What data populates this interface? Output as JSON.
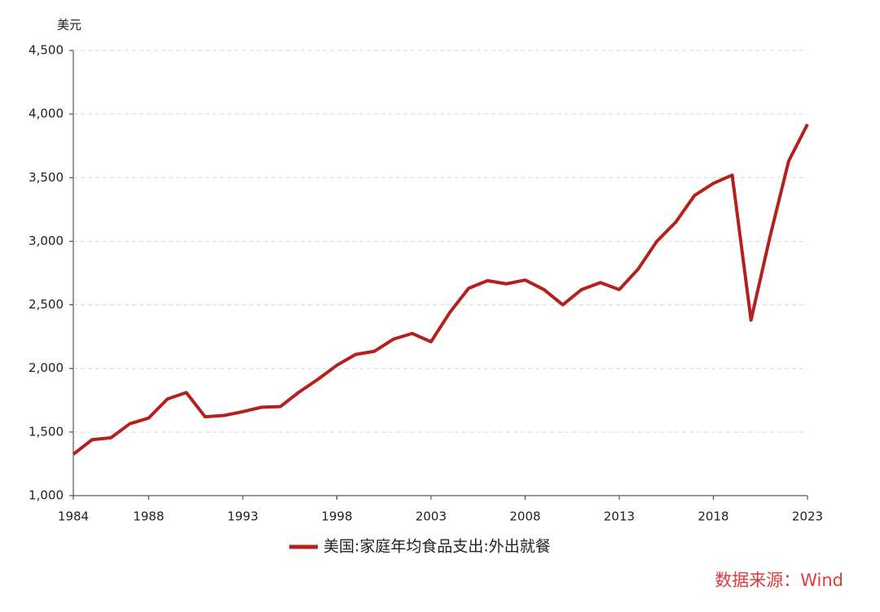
{
  "chart_data": {
    "type": "line",
    "y_unit": "美元",
    "source": "数据来源：Wind",
    "x": [
      1984,
      1985,
      1986,
      1987,
      1988,
      1989,
      1990,
      1991,
      1992,
      1993,
      1994,
      1995,
      1996,
      1997,
      1998,
      1999,
      2000,
      2001,
      2002,
      2003,
      2004,
      2005,
      2006,
      2007,
      2008,
      2009,
      2010,
      2011,
      2012,
      2013,
      2014,
      2015,
      2016,
      2017,
      2018,
      2019,
      2020,
      2021,
      2022,
      2023
    ],
    "series": [
      {
        "name": "美国:家庭年均食品支出:外出就餐",
        "color": "#b5201e",
        "values": [
          1325,
          1440,
          1455,
          1565,
          1610,
          1760,
          1810,
          1620,
          1630,
          1660,
          1695,
          1700,
          1815,
          1915,
          2025,
          2110,
          2135,
          2230,
          2275,
          2210,
          2440,
          2630,
          2690,
          2665,
          2695,
          2620,
          2500,
          2620,
          2675,
          2620,
          2780,
          3000,
          3150,
          3360,
          3455,
          3520,
          2380,
          3030,
          3630,
          3920
        ]
      }
    ],
    "xlim": [
      1984,
      2023
    ],
    "xticks": [
      1984,
      1988,
      1993,
      1998,
      2003,
      2008,
      2013,
      2018,
      2023
    ],
    "ylim": [
      1000,
      4500
    ],
    "yticks": [
      {
        "value": 1000,
        "label": "1,000"
      },
      {
        "value": 1500,
        "label": "1,500"
      },
      {
        "value": 2000,
        "label": "2,000"
      },
      {
        "value": 2500,
        "label": "2,500"
      },
      {
        "value": 3000,
        "label": "3,000"
      },
      {
        "value": 3500,
        "label": "3,500"
      },
      {
        "value": 4000,
        "label": "4,000"
      },
      {
        "value": 4500,
        "label": "4,500"
      }
    ],
    "grid": true
  }
}
